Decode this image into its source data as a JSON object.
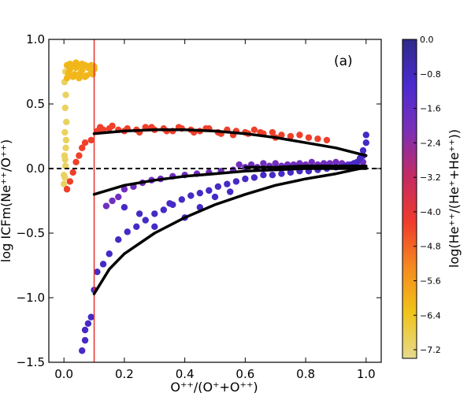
{
  "chart_data": {
    "type": "scatter",
    "panel_label": "(a)",
    "xlabel": "O⁺⁺/(O⁺+O⁺⁺)",
    "ylabel": "log ICFm(Ne⁺⁺/O⁺⁺)",
    "xlim": [
      -0.05,
      1.05
    ],
    "ylim": [
      -1.5,
      1.0
    ],
    "x_ticks": [
      0.0,
      0.2,
      0.4,
      0.6,
      0.8,
      1.0
    ],
    "x_tick_labels": [
      "0.0",
      "0.2",
      "0.4",
      "0.6",
      "0.8",
      "1.0"
    ],
    "y_ticks": [
      -1.5,
      -1.0,
      -0.5,
      0.0,
      0.5,
      1.0
    ],
    "y_tick_labels": [
      "−1.5",
      "−1.0",
      "−0.5",
      "0.0",
      "0.5",
      "1.0"
    ],
    "grid": false,
    "reference_hline": {
      "y": 0.0,
      "style": "dashed",
      "color": "#000000"
    },
    "reference_vline": {
      "x": 0.1,
      "color": "#e8312a"
    },
    "colorbar": {
      "label": "log(He⁺⁺/(He⁺+He⁺⁺))",
      "range": [
        -7.4,
        0.0
      ],
      "ticks": [
        0.0,
        -0.8,
        -1.6,
        -2.4,
        -3.2,
        -4.0,
        -4.8,
        -5.6,
        -6.4,
        -7.2
      ],
      "tick_labels": [
        "0.0",
        "−0.8",
        "−1.6",
        "−2.4",
        "−3.2",
        "−4.0",
        "−4.8",
        "−5.6",
        "−6.4",
        "−7.2"
      ],
      "colors": [
        "#e6da8e",
        "#f0c419",
        "#f58a1f",
        "#ef3a2c",
        "#c42a63",
        "#7b2fb8",
        "#4a2ad0",
        "#2f2a88"
      ]
    },
    "fit_curves": [
      {
        "x": [
          0.1,
          0.2,
          0.3,
          0.4,
          0.5,
          0.6,
          0.7,
          0.8,
          0.9,
          1.0
        ],
        "y": [
          0.27,
          0.29,
          0.3,
          0.3,
          0.29,
          0.27,
          0.24,
          0.2,
          0.16,
          0.1
        ]
      },
      {
        "x": [
          0.1,
          0.2,
          0.3,
          0.4,
          0.5,
          0.6,
          0.7,
          0.8,
          0.9,
          1.0
        ],
        "y": [
          -0.2,
          -0.13,
          -0.09,
          -0.06,
          -0.04,
          -0.02,
          -0.01,
          0.0,
          0.0,
          0.0
        ]
      },
      {
        "x": [
          0.1,
          0.15,
          0.2,
          0.3,
          0.4,
          0.5,
          0.6,
          0.7,
          0.8,
          0.9,
          1.0
        ],
        "y": [
          -0.97,
          -0.78,
          -0.66,
          -0.5,
          -0.38,
          -0.28,
          -0.2,
          -0.13,
          -0.08,
          -0.04,
          0.01
        ]
      },
      {
        "x": [
          0.6,
          0.7,
          0.8,
          0.9,
          1.0
        ],
        "y": [
          0.01,
          0.01,
          0.02,
          0.02,
          0.02
        ]
      }
    ],
    "series": [
      {
        "color_value": -7.0,
        "x": [
          0.0,
          0.0,
          0.003,
          0.005,
          0.004,
          0.006,
          0.002,
          0.007,
          0.003,
          0.008,
          0.004,
          0.006,
          0.002,
          0.005
        ],
        "y": [
          -0.12,
          -0.05,
          -0.07,
          0.02,
          0.07,
          0.16,
          0.1,
          0.22,
          0.28,
          0.36,
          0.47,
          0.57,
          0.67,
          0.75
        ]
      },
      {
        "color_value": -6.1,
        "x": [
          0.01,
          0.02,
          0.03,
          0.04,
          0.05,
          0.06,
          0.07,
          0.08,
          0.09,
          0.1,
          0.02,
          0.04,
          0.06,
          0.08,
          0.1,
          0.015,
          0.035,
          0.055,
          0.075,
          0.095,
          0.01,
          0.03,
          0.05,
          0.07,
          0.09,
          0.1
        ],
        "y": [
          0.8,
          0.81,
          0.8,
          0.82,
          0.8,
          0.81,
          0.8,
          0.79,
          0.8,
          0.79,
          0.77,
          0.78,
          0.76,
          0.78,
          0.77,
          0.74,
          0.73,
          0.74,
          0.72,
          0.73,
          0.7,
          0.71,
          0.7,
          0.71,
          0.74,
          0.77
        ]
      },
      {
        "color_value": -4.3,
        "x": [
          0.01,
          0.02,
          0.03,
          0.04,
          0.05,
          0.06,
          0.07,
          0.09,
          0.11,
          0.13,
          0.15,
          0.18,
          0.21,
          0.24,
          0.27,
          0.3,
          0.33,
          0.36,
          0.39,
          0.42,
          0.45,
          0.48,
          0.51,
          0.54,
          0.57,
          0.6,
          0.63,
          0.66,
          0.69,
          0.72,
          0.75,
          0.78,
          0.81,
          0.84,
          0.87,
          0.12,
          0.16,
          0.2,
          0.25,
          0.29,
          0.34,
          0.38,
          0.43,
          0.47,
          0.52,
          0.56,
          0.61,
          0.65,
          0.7
        ],
        "y": [
          -0.16,
          -0.1,
          -0.03,
          0.05,
          0.1,
          0.16,
          0.2,
          0.22,
          0.29,
          0.3,
          0.31,
          0.3,
          0.31,
          0.3,
          0.32,
          0.3,
          0.31,
          0.29,
          0.31,
          0.3,
          0.29,
          0.31,
          0.28,
          0.3,
          0.29,
          0.28,
          0.3,
          0.27,
          0.28,
          0.26,
          0.25,
          0.26,
          0.24,
          0.23,
          0.22,
          0.32,
          0.33,
          0.29,
          0.28,
          0.32,
          0.29,
          0.32,
          0.28,
          0.31,
          0.27,
          0.26,
          0.27,
          0.28,
          0.24
        ]
      },
      {
        "color_value": -1.9,
        "x": [
          0.14,
          0.16,
          0.18,
          0.2,
          0.23,
          0.26,
          0.29,
          0.32,
          0.36,
          0.4,
          0.44,
          0.48,
          0.52,
          0.56,
          0.6,
          0.64,
          0.68,
          0.72,
          0.76,
          0.8,
          0.84,
          0.88,
          0.92,
          0.96,
          0.99,
          0.58,
          0.62,
          0.66,
          0.7,
          0.74,
          0.78,
          0.82,
          0.86,
          0.9,
          0.94,
          0.98
        ],
        "y": [
          -0.29,
          -0.25,
          -0.22,
          -0.16,
          -0.14,
          -0.11,
          -0.09,
          -0.08,
          -0.06,
          -0.05,
          -0.04,
          -0.03,
          -0.02,
          -0.01,
          0.01,
          0.01,
          0.02,
          0.02,
          0.03,
          0.03,
          0.03,
          0.04,
          0.04,
          0.04,
          0.05,
          0.03,
          0.03,
          0.04,
          0.04,
          0.03,
          0.04,
          0.05,
          0.04,
          0.05,
          0.03,
          0.06
        ]
      },
      {
        "color_value": -0.9,
        "x": [
          0.06,
          0.07,
          0.07,
          0.08,
          0.09,
          0.1,
          0.11,
          0.13,
          0.15,
          0.18,
          0.21,
          0.24,
          0.27,
          0.3,
          0.33,
          0.36,
          0.39,
          0.42,
          0.45,
          0.48,
          0.51,
          0.54,
          0.57,
          0.6,
          0.63,
          0.66,
          0.69,
          0.72,
          0.75,
          0.78,
          0.81,
          0.84,
          0.87,
          0.9,
          0.93,
          0.96,
          0.98,
          0.99,
          1.0,
          1.0,
          0.99,
          0.97,
          0.95,
          0.4,
          0.45,
          0.5,
          0.55,
          0.2,
          0.25,
          0.3,
          0.35
        ],
        "y": [
          -1.41,
          -1.33,
          -1.25,
          -1.2,
          -1.15,
          -0.94,
          -0.8,
          -0.74,
          -0.66,
          -0.55,
          -0.49,
          -0.45,
          -0.4,
          -0.35,
          -0.32,
          -0.28,
          -0.24,
          -0.21,
          -0.19,
          -0.17,
          -0.14,
          -0.12,
          -0.1,
          -0.08,
          -0.07,
          -0.05,
          -0.05,
          -0.04,
          -0.03,
          -0.02,
          -0.02,
          -0.01,
          0.0,
          0.01,
          0.02,
          0.04,
          0.08,
          0.14,
          0.2,
          0.26,
          0.1,
          0.05,
          0.03,
          -0.38,
          -0.3,
          -0.22,
          -0.18,
          -0.3,
          -0.35,
          -0.45,
          -0.27
        ]
      }
    ]
  }
}
